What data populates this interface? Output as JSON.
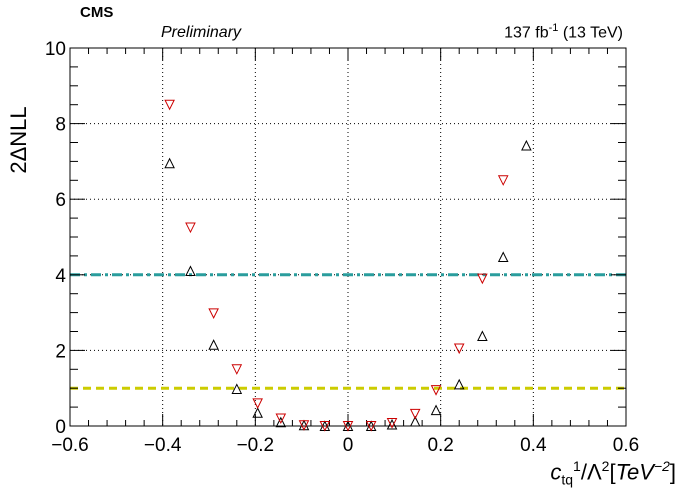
{
  "header": {
    "cms": "CMS",
    "preliminary": "Preliminary",
    "lumi_value": "137 fb",
    "lumi_exp": "-1",
    "lumi_energy": " (13 TeV)"
  },
  "axis_labels": {
    "y": "2ΔNLL",
    "x_symbol": "c",
    "x_sub": "tq",
    "x_sup": "1",
    "x_den": "/Λ",
    "x_den_sup": "2",
    "x_unit_open": "[",
    "x_unit": "TeV",
    "x_unit_sup": "−2",
    "x_unit_close": "]"
  },
  "chart_data": {
    "type": "scatter",
    "title": "",
    "xlim": [
      -0.6,
      0.6
    ],
    "ylim": [
      0,
      10
    ],
    "x_ticks": [
      -0.6,
      -0.4,
      -0.2,
      0,
      0.2,
      0.4,
      0.6
    ],
    "x_tick_labels": [
      "−0.6",
      "−0.4",
      "−0.2",
      "0",
      "0.2",
      "0.4",
      "0.6"
    ],
    "y_ticks": [
      0,
      2,
      4,
      6,
      8,
      10
    ],
    "y_tick_labels": [
      "0",
      "2",
      "4",
      "6",
      "8",
      "10"
    ],
    "grid": true,
    "reference_lines": [
      {
        "y": 4,
        "color": "#2a9d9d",
        "style": "dash-dot"
      },
      {
        "y": 1,
        "color": "#cccc00",
        "style": "dashed"
      }
    ],
    "series": [
      {
        "marker": "triangle-up-open",
        "color": "#000000",
        "points": [
          {
            "x": -0.385,
            "y": 6.95
          },
          {
            "x": -0.34,
            "y": 4.1
          },
          {
            "x": -0.29,
            "y": 2.15
          },
          {
            "x": -0.24,
            "y": 0.98
          },
          {
            "x": -0.195,
            "y": 0.35
          },
          {
            "x": -0.145,
            "y": 0.1
          },
          {
            "x": -0.095,
            "y": 0.02
          },
          {
            "x": -0.05,
            "y": 0.0
          },
          {
            "x": 0.0,
            "y": 0.0
          },
          {
            "x": 0.05,
            "y": 0.0
          },
          {
            "x": 0.095,
            "y": 0.04
          },
          {
            "x": 0.145,
            "y": 0.12
          },
          {
            "x": 0.19,
            "y": 0.42
          },
          {
            "x": 0.24,
            "y": 1.1
          },
          {
            "x": 0.29,
            "y": 2.38
          },
          {
            "x": 0.335,
            "y": 4.47
          },
          {
            "x": 0.385,
            "y": 7.42
          }
        ]
      },
      {
        "marker": "triangle-down-open",
        "color": "#cc0000",
        "points": [
          {
            "x": -0.385,
            "y": 8.5
          },
          {
            "x": -0.34,
            "y": 5.25
          },
          {
            "x": -0.29,
            "y": 2.98
          },
          {
            "x": -0.24,
            "y": 1.5
          },
          {
            "x": -0.195,
            "y": 0.6
          },
          {
            "x": -0.145,
            "y": 0.2
          },
          {
            "x": -0.095,
            "y": 0.02
          },
          {
            "x": -0.05,
            "y": 0.0
          },
          {
            "x": 0.0,
            "y": 0.0
          },
          {
            "x": 0.05,
            "y": 0.0
          },
          {
            "x": 0.095,
            "y": 0.08
          },
          {
            "x": 0.145,
            "y": 0.32
          },
          {
            "x": 0.19,
            "y": 0.95
          },
          {
            "x": 0.24,
            "y": 2.05
          },
          {
            "x": 0.29,
            "y": 3.9
          },
          {
            "x": 0.335,
            "y": 6.5
          }
        ]
      }
    ]
  }
}
